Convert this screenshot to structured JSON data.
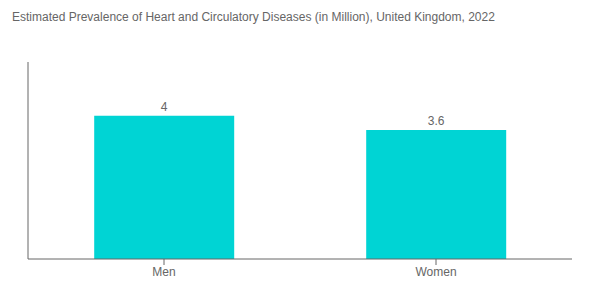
{
  "chart_data": {
    "type": "bar",
    "title": "Estimated Prevalence of Heart and Circulatory Diseases (in Million), United Kingdom, 2022",
    "categories": [
      "Men",
      "Women"
    ],
    "values": [
      4,
      3.6
    ],
    "color": "#00D4D4",
    "ylim": [
      0,
      5.5
    ],
    "data_labels": true,
    "tick_labels": "x",
    "grid": false
  }
}
